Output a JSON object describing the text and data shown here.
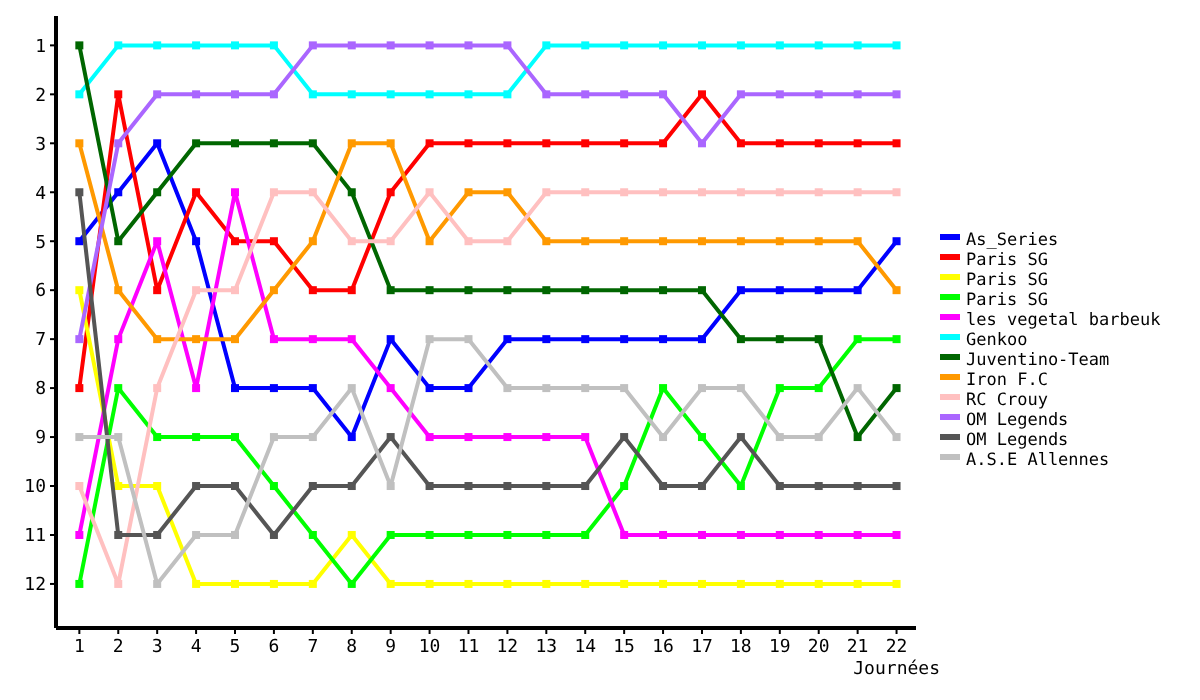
{
  "chart_data": {
    "type": "line",
    "xlabel": "Journées",
    "x": [
      1,
      2,
      3,
      4,
      5,
      6,
      7,
      8,
      9,
      10,
      11,
      12,
      13,
      14,
      15,
      16,
      17,
      18,
      19,
      20,
      21,
      22
    ],
    "xlim": [
      0.4,
      22.5
    ],
    "xticks": [
      1,
      2,
      3,
      4,
      5,
      6,
      7,
      8,
      9,
      10,
      11,
      12,
      13,
      14,
      15,
      16,
      17,
      18,
      19,
      20,
      21,
      22
    ],
    "ylim": [
      12.9,
      0.4
    ],
    "yticks": [
      1,
      2,
      3,
      4,
      5,
      6,
      7,
      8,
      9,
      10,
      11,
      12
    ],
    "grid": false,
    "legend": "right",
    "marker": "square",
    "line_style": "solid",
    "series": [
      {
        "name": "As_Series",
        "color": "#0000ff",
        "values": [
          5,
          4,
          3,
          5,
          8,
          8,
          8,
          9,
          7,
          8,
          8,
          7,
          7,
          7,
          7,
          7,
          7,
          6,
          6,
          6,
          6,
          5
        ]
      },
      {
        "name": "Paris SG",
        "color": "#ff0000",
        "values": [
          8,
          2,
          6,
          4,
          5,
          5,
          6,
          6,
          4,
          3,
          3,
          3,
          3,
          3,
          3,
          3,
          2,
          3,
          3,
          3,
          3,
          3
        ]
      },
      {
        "name": "Paris SG",
        "color": "#ffff00",
        "values": [
          6,
          10,
          10,
          12,
          12,
          12,
          12,
          11,
          12,
          12,
          12,
          12,
          12,
          12,
          12,
          12,
          12,
          12,
          12,
          12,
          12,
          12
        ]
      },
      {
        "name": "Paris SG",
        "color": "#00ff00",
        "values": [
          12,
          8,
          9,
          9,
          9,
          10,
          11,
          12,
          11,
          11,
          11,
          11,
          11,
          11,
          10,
          8,
          9,
          10,
          8,
          8,
          7,
          7
        ]
      },
      {
        "name": "les vegetal barbeuk",
        "color": "#ff00ff",
        "values": [
          11,
          7,
          5,
          8,
          4,
          7,
          7,
          7,
          8,
          9,
          9,
          9,
          9,
          9,
          11,
          11,
          11,
          11,
          11,
          11,
          11,
          11
        ]
      },
      {
        "name": "Genkoo",
        "color": "#00ffff",
        "values": [
          2,
          1,
          1,
          1,
          1,
          1,
          2,
          2,
          2,
          2,
          2,
          2,
          1,
          1,
          1,
          1,
          1,
          1,
          1,
          1,
          1,
          1
        ]
      },
      {
        "name": "Juventino-Team",
        "color": "#006600",
        "values": [
          1,
          5,
          4,
          3,
          3,
          3,
          3,
          4,
          6,
          6,
          6,
          6,
          6,
          6,
          6,
          6,
          6,
          7,
          7,
          7,
          9,
          8
        ]
      },
      {
        "name": "Iron F.C",
        "color": "#ff9900",
        "values": [
          3,
          6,
          7,
          7,
          7,
          6,
          5,
          3,
          3,
          5,
          4,
          4,
          5,
          5,
          5,
          5,
          5,
          5,
          5,
          5,
          5,
          6
        ]
      },
      {
        "name": "RC Crouy",
        "color": "#ffc0c0",
        "values": [
          10,
          12,
          8,
          6,
          6,
          4,
          4,
          5,
          5,
          4,
          5,
          5,
          4,
          4,
          4,
          4,
          4,
          4,
          4,
          4,
          4,
          4
        ]
      },
      {
        "name": "OM Legends",
        "color": "#aa66ff",
        "values": [
          7,
          3,
          2,
          2,
          2,
          2,
          1,
          1,
          1,
          1,
          1,
          1,
          2,
          2,
          2,
          2,
          3,
          2,
          2,
          2,
          2,
          2
        ]
      },
      {
        "name": "OM Legends",
        "color": "#555555",
        "values": [
          4,
          11,
          11,
          10,
          10,
          11,
          10,
          10,
          9,
          10,
          10,
          10,
          10,
          10,
          9,
          10,
          10,
          9,
          10,
          10,
          10,
          10
        ]
      },
      {
        "name": "A.S.E Allennes",
        "color": "#c0c0c0",
        "values": [
          9,
          9,
          12,
          11,
          11,
          9,
          9,
          8,
          10,
          7,
          7,
          8,
          8,
          8,
          8,
          9,
          8,
          8,
          9,
          9,
          8,
          9
        ]
      }
    ]
  }
}
